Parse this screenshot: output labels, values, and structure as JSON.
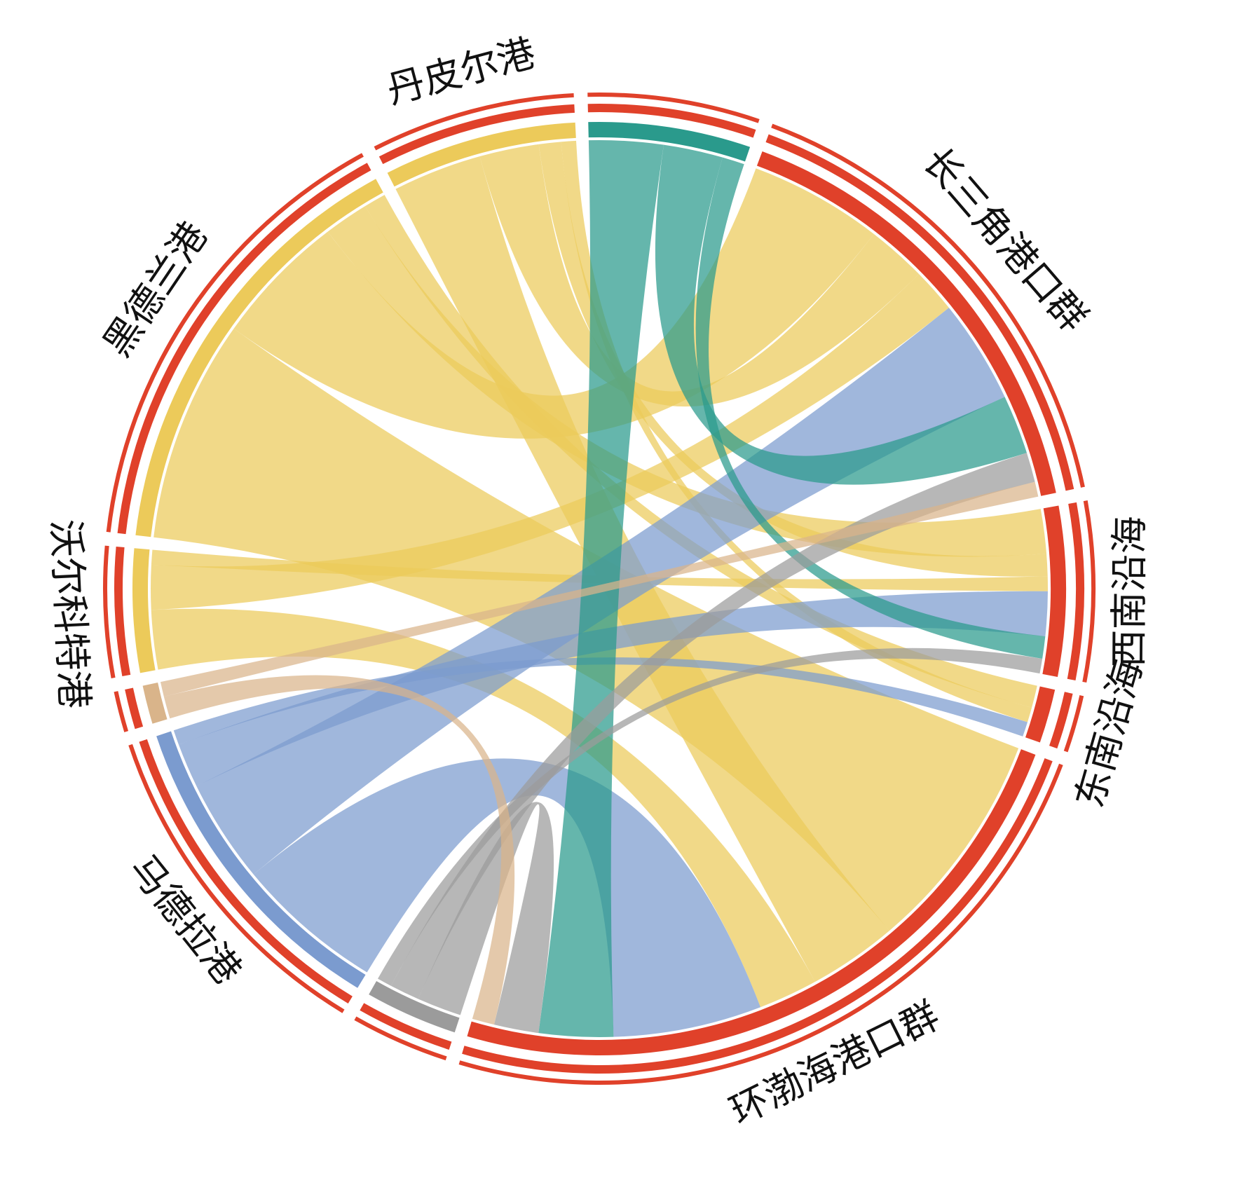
{
  "chart_data": {
    "type": "chord",
    "groups": [
      {
        "name": "丹皮尔港",
        "color": "#ecca5a"
      },
      {
        "name": null,
        "color": "#2a9a8c"
      },
      {
        "name": "长三角港口群",
        "color": "#e0412a"
      },
      {
        "name": "西南沿海",
        "color": "#e0412a"
      },
      {
        "name": "东南沿海",
        "color": "#e0412a"
      },
      {
        "name": "环渤海港口群",
        "color": "#e0412a"
      },
      {
        "name": null,
        "color": "#9b9b9b"
      },
      {
        "name": "马德拉港",
        "color": "#7b9bcf"
      },
      {
        "name": null,
        "color": "#d9b48a"
      },
      {
        "name": "沃尔科特港",
        "color": "#ecca5a"
      },
      {
        "name": "黑德兰港",
        "color": "#ecca5a"
      }
    ],
    "chords": [
      {
        "source": 10,
        "target": 5,
        "value": 30
      },
      {
        "source": 10,
        "target": 2,
        "value": 18
      },
      {
        "source": 10,
        "target": 3,
        "value": 6
      },
      {
        "source": 10,
        "target": 4,
        "value": 3
      },
      {
        "source": 0,
        "target": 5,
        "value": 12
      },
      {
        "source": 0,
        "target": 2,
        "value": 8
      },
      {
        "source": 0,
        "target": 3,
        "value": 3
      },
      {
        "source": 0,
        "target": 4,
        "value": 2
      },
      {
        "source": 9,
        "target": 5,
        "value": 8
      },
      {
        "source": 9,
        "target": 2,
        "value": 6
      },
      {
        "source": 9,
        "target": 3,
        "value": 2
      },
      {
        "source": 7,
        "target": 5,
        "value": 20
      },
      {
        "source": 7,
        "target": 2,
        "value": 14
      },
      {
        "source": 7,
        "target": 3,
        "value": 6
      },
      {
        "source": 7,
        "target": 4,
        "value": 2
      },
      {
        "source": 1,
        "target": 5,
        "value": 10
      },
      {
        "source": 1,
        "target": 2,
        "value": 8
      },
      {
        "source": 1,
        "target": 3,
        "value": 3
      },
      {
        "source": 6,
        "target": 5,
        "value": 6
      },
      {
        "source": 6,
        "target": 2,
        "value": 4
      },
      {
        "source": 6,
        "target": 3,
        "value": 2
      },
      {
        "source": 8,
        "target": 5,
        "value": 3
      },
      {
        "source": 8,
        "target": 2,
        "value": 2
      }
    ]
  }
}
